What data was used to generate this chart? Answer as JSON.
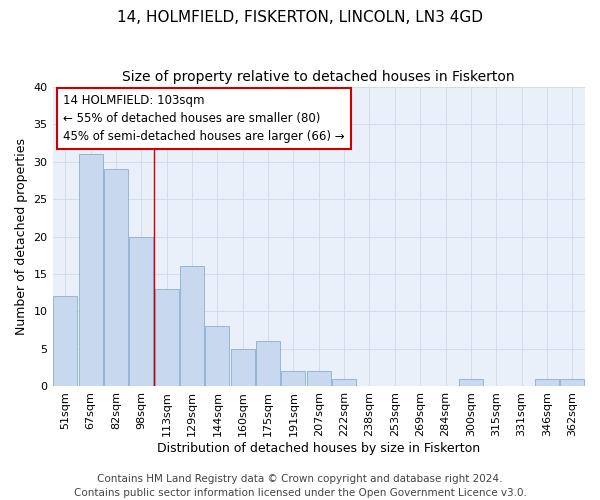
{
  "title": "14, HOLMFIELD, FISKERTON, LINCOLN, LN3 4GD",
  "subtitle": "Size of property relative to detached houses in Fiskerton",
  "xlabel": "Distribution of detached houses by size in Fiskerton",
  "ylabel": "Number of detached properties",
  "categories": [
    "51sqm",
    "67sqm",
    "82sqm",
    "98sqm",
    "113sqm",
    "129sqm",
    "144sqm",
    "160sqm",
    "175sqm",
    "191sqm",
    "207sqm",
    "222sqm",
    "238sqm",
    "253sqm",
    "269sqm",
    "284sqm",
    "300sqm",
    "315sqm",
    "331sqm",
    "346sqm",
    "362sqm"
  ],
  "values": [
    12,
    31,
    29,
    20,
    13,
    16,
    8,
    5,
    6,
    2,
    2,
    1,
    0,
    0,
    0,
    0,
    1,
    0,
    0,
    1,
    1
  ],
  "bar_color": "#c8d8ee",
  "bar_edge_color": "#8aafd0",
  "ylim": [
    0,
    40
  ],
  "yticks": [
    0,
    5,
    10,
    15,
    20,
    25,
    30,
    35,
    40
  ],
  "annotation_line1": "14 HOLMFIELD: 103sqm",
  "annotation_line2": "← 55% of detached houses are smaller (80)",
  "annotation_line3": "45% of semi-detached houses are larger (66) →",
  "annotation_box_color": "#ffffff",
  "annotation_box_edge": "#cc0000",
  "redline_x": 3.5,
  "grid_color": "#d4dcea",
  "background_color": "#ffffff",
  "plot_bg_color": "#eaf0fa",
  "footer_line1": "Contains HM Land Registry data © Crown copyright and database right 2024.",
  "footer_line2": "Contains public sector information licensed under the Open Government Licence v3.0.",
  "title_fontsize": 11,
  "subtitle_fontsize": 10,
  "xlabel_fontsize": 9,
  "ylabel_fontsize": 9,
  "tick_fontsize": 8,
  "footer_fontsize": 7.5
}
